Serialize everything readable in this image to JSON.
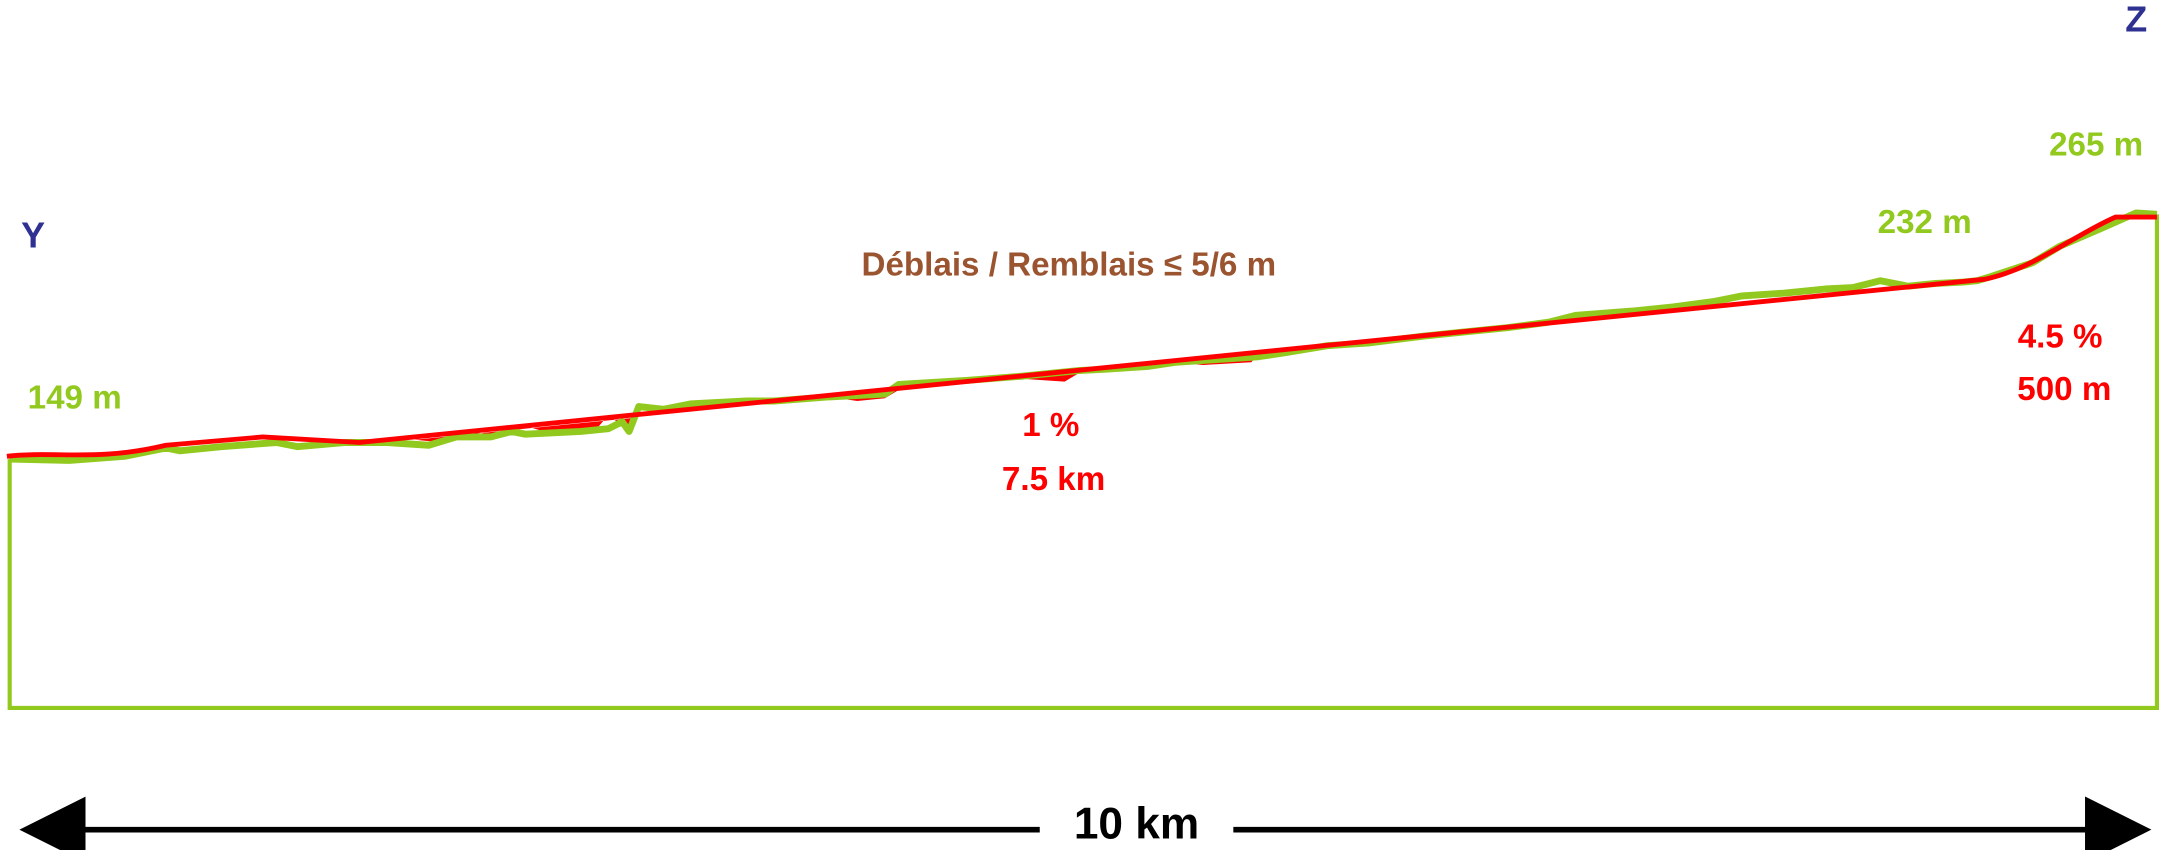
{
  "profile": {
    "start_point": "Y",
    "end_point": "Z",
    "start_elevation": "149 m",
    "mid_elevation": "232 m",
    "end_elevation": "265 m",
    "title": "Déblais / Remblais ≤ 5/6 m",
    "segment_1": {
      "slope": "1 %",
      "length": "7.5 km"
    },
    "segment_2": {
      "slope": "4.5 %",
      "length": "500 m"
    },
    "total_length": "10 km"
  }
}
